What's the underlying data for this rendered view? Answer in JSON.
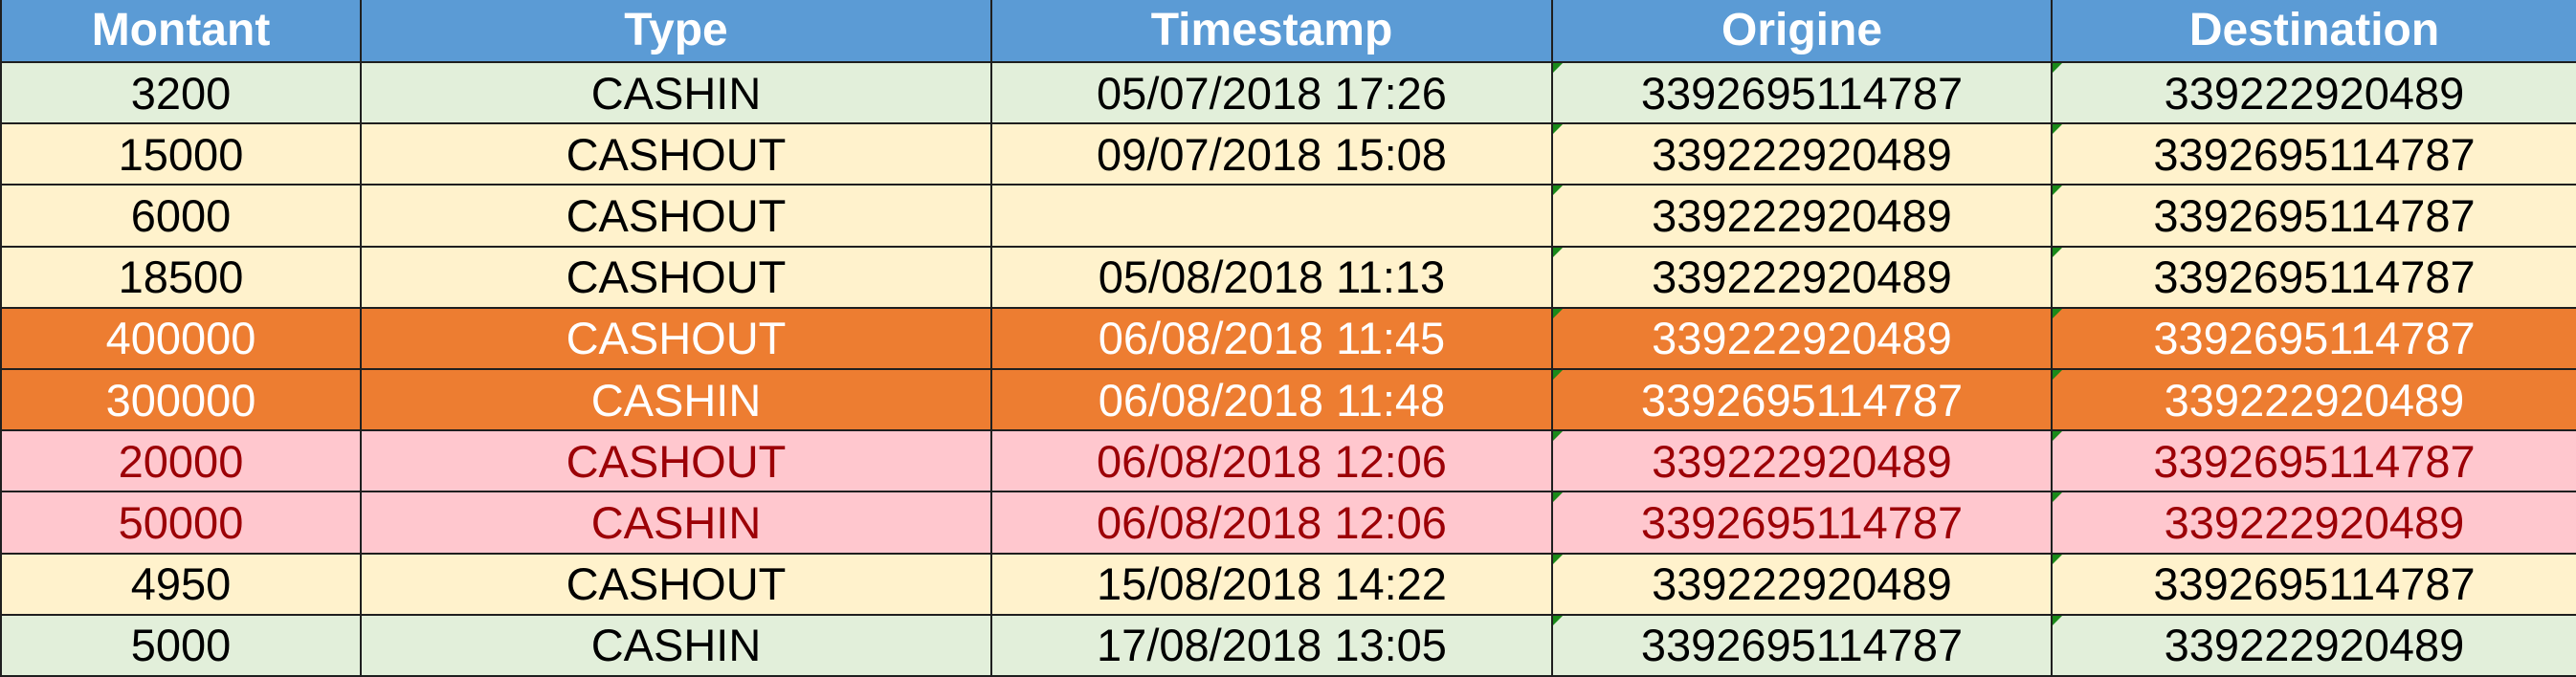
{
  "headers": {
    "montant": "Montant",
    "type": "Type",
    "timestamp": "Timestamp",
    "origine": "Origine",
    "destination": "Destination"
  },
  "colors": {
    "header": "#5b9bd5",
    "green_row": "#e2efda",
    "yellow_row": "#fff2cc",
    "orange_row": "#ed7d31",
    "pink_row": "#ffc7ce",
    "pink_text": "#9c0006",
    "text_number_marker": "#1a8a1a"
  },
  "rows": [
    {
      "montant": "3200",
      "type": "CASHIN",
      "timestamp": "05/07/2018 17:26",
      "origine": "3392695114787",
      "destination": "339222920489",
      "style": "green"
    },
    {
      "montant": "15000",
      "type": "CASHOUT",
      "timestamp": "09/07/2018 15:08",
      "origine": "339222920489",
      "destination": "3392695114787",
      "style": "yellow"
    },
    {
      "montant": "6000",
      "type": "CASHOUT",
      "timestamp": "",
      "origine": "339222920489",
      "destination": "3392695114787",
      "style": "yellow"
    },
    {
      "montant": "18500",
      "type": "CASHOUT",
      "timestamp": "05/08/2018 11:13",
      "origine": "339222920489",
      "destination": "3392695114787",
      "style": "yellow"
    },
    {
      "montant": "400000",
      "type": "CASHOUT",
      "timestamp": "06/08/2018 11:45",
      "origine": "339222920489",
      "destination": "3392695114787",
      "style": "orange"
    },
    {
      "montant": "300000",
      "type": "CASHIN",
      "timestamp": "06/08/2018 11:48",
      "origine": "3392695114787",
      "destination": "339222920489",
      "style": "orange"
    },
    {
      "montant": "20000",
      "type": "CASHOUT",
      "timestamp": "06/08/2018 12:06",
      "origine": "339222920489",
      "destination": "3392695114787",
      "style": "pink"
    },
    {
      "montant": "50000",
      "type": "CASHIN",
      "timestamp": "06/08/2018 12:06",
      "origine": "3392695114787",
      "destination": "339222920489",
      "style": "pink"
    },
    {
      "montant": "4950",
      "type": "CASHOUT",
      "timestamp": "15/08/2018 14:22",
      "origine": "339222920489",
      "destination": "3392695114787",
      "style": "yellow"
    },
    {
      "montant": "5000",
      "type": "CASHIN",
      "timestamp": "17/08/2018 13:05",
      "origine": "3392695114787",
      "destination": "339222920489",
      "style": "green"
    }
  ]
}
